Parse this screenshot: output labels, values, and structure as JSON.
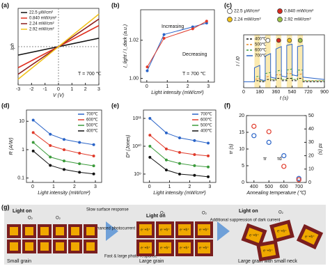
{
  "chart_data": [
    {
      "panel": "(a)",
      "type": "line",
      "x": [
        -3,
        3
      ],
      "xlim": [
        -3,
        3
      ],
      "xticks": [
        -3,
        -2,
        -1,
        0,
        1,
        2,
        3
      ],
      "ylim": [
        -1,
        1
      ],
      "xlabel": "V (V)",
      "ylabel": "Iph",
      "legend": "upper left",
      "annotations": [
        "T = 700 ℃"
      ],
      "series": [
        {
          "name": "22.5 μW/cm²",
          "color": "#111111",
          "values": [
            -0.22,
            0.22
          ]
        },
        {
          "name": "0.840 mW/cm²",
          "color": "#e03020",
          "values": [
            -0.55,
            0.55
          ]
        },
        {
          "name": "2.24 mW/cm²",
          "color": "#8b1a1a",
          "values": [
            -0.72,
            0.72
          ]
        },
        {
          "name": "2.92 mW/cm²",
          "color": "#f2c21b",
          "values": [
            -0.85,
            0.85
          ]
        }
      ]
    },
    {
      "panel": "(b)",
      "type": "line",
      "markers": true,
      "x": [
        0.0225,
        0.84,
        2.24,
        2.92
      ],
      "xlim": [
        -0.3,
        3.3
      ],
      "xticks": [
        0,
        1,
        2,
        3
      ],
      "ylim": [
        0.998,
        1.036
      ],
      "yticks": [
        {
          "value": 1,
          "label": "1.00"
        },
        1.02
      ],
      "xlabel": "Light intensity (mW/cm²)",
      "ylabel": "I_light / I_dark (a.u.)",
      "annotations": [
        "Increasing",
        "Decreasing",
        "T = 700 ℃"
      ],
      "series": [
        {
          "name": "Increasing",
          "color": "#2a64c8",
          "values": [
            1.004,
            1.023,
            1.027,
            1.029
          ]
        },
        {
          "name": "Decreasing",
          "color": "#e03a2a",
          "values": [
            1.006,
            1.021,
            1.026,
            1.03
          ]
        }
      ]
    },
    {
      "panel": "(c)",
      "type": "line",
      "x": [
        0,
        120,
        120,
        180,
        180,
        240,
        240,
        300,
        300,
        360,
        360,
        420,
        420,
        480,
        480,
        540,
        540,
        600,
        600,
        660,
        660,
        900
      ],
      "xlim": [
        0,
        900
      ],
      "xticks": [
        0,
        180,
        360,
        540,
        720,
        900
      ],
      "ylim": [
        0.995,
        1.04
      ],
      "xlabel": "t (s)",
      "ylabel": "I / I0",
      "legend": "upper left",
      "light_on": [
        [
          120,
          180
        ],
        [
          240,
          300
        ],
        [
          360,
          420
        ],
        [
          480,
          540
        ],
        [
          600,
          660
        ]
      ],
      "markers_legend": [
        {
          "name": "22.5 μW/cm²",
          "color": "#ffffff"
        },
        {
          "name": "0.840 mW/cm²",
          "color": "#d62a1e"
        },
        {
          "name": "2.24 mW/cm²",
          "color": "#f2c21b"
        },
        {
          "name": "2.92 mW/cm²",
          "color": "#9cc24a"
        }
      ],
      "series": [
        {
          "name": "400℃",
          "color": "#111111",
          "dash": true,
          "values": [
            1.0,
            1.0,
            1.001,
            1.001,
            1.0,
            1.0,
            1.002,
            1.002,
            1.001,
            1.001,
            1.003,
            1.003,
            1.001,
            1.001,
            1.003,
            1.003,
            1.001,
            1.001,
            1.003,
            1.003,
            1.0,
            1.0
          ]
        },
        {
          "name": "500℃",
          "color": "#e8891e",
          "dash": true,
          "values": [
            1.0,
            1.0,
            1.002,
            1.003,
            1.001,
            1.001,
            1.004,
            1.005,
            1.002,
            1.002,
            1.006,
            1.006,
            1.002,
            1.002,
            1.007,
            1.007,
            1.002,
            1.002,
            1.006,
            1.007,
            1.001,
            1.001
          ]
        },
        {
          "name": "600℃",
          "color": "#3a9a3a",
          "dash": true,
          "values": [
            1.0,
            1.0,
            1.004,
            1.005,
            1.001,
            1.001,
            1.007,
            1.008,
            1.002,
            1.002,
            1.009,
            1.01,
            1.002,
            1.002,
            1.01,
            1.011,
            1.002,
            1.002,
            1.01,
            1.01,
            1.001,
            1.001
          ]
        },
        {
          "name": "700℃",
          "color": "#2a64c8",
          "values": [
            1.0,
            1.0,
            1.012,
            1.014,
            1.002,
            1.001,
            1.022,
            1.024,
            1.004,
            1.003,
            1.028,
            1.03,
            1.005,
            1.004,
            1.031,
            1.032,
            1.006,
            1.005,
            1.03,
            1.031,
            1.004,
            1.002
          ]
        }
      ]
    },
    {
      "panel": "(d)",
      "type": "line",
      "markers": true,
      "log_scale": true,
      "x": [
        0.0225,
        0.84,
        1.5,
        2.24,
        2.92
      ],
      "xlim": [
        -0.3,
        3.3
      ],
      "xticks": [
        0,
        1,
        2,
        3
      ],
      "ylim": [
        0.07,
        25
      ],
      "yticks": [
        0.1,
        1,
        10
      ],
      "xlabel": "Light intensity (mW/cm²)",
      "ylabel": "R (A/W)",
      "legend": "upper right",
      "series": [
        {
          "name": "700℃",
          "color": "#2a64c8",
          "values": [
            11,
            3.5,
            2.3,
            1.8,
            1.5
          ]
        },
        {
          "name": "600℃",
          "color": "#e03a2a",
          "values": [
            4,
            1.4,
            1.0,
            0.75,
            0.6
          ]
        },
        {
          "name": "500℃",
          "color": "#3a9a3a",
          "values": [
            1.8,
            0.55,
            0.4,
            0.32,
            0.27
          ]
        },
        {
          "name": "400℃",
          "color": "#111111",
          "values": [
            0.9,
            0.28,
            0.2,
            0.16,
            0.14
          ]
        }
      ]
    },
    {
      "panel": "(e)",
      "type": "line",
      "markers": true,
      "log_scale": true,
      "x": [
        0.0225,
        0.84,
        1.5,
        2.24,
        2.92
      ],
      "xlim": [
        -0.3,
        3.3
      ],
      "xticks": [
        0,
        1,
        2,
        3
      ],
      "ylim": [
        500000000,
        200000000000
      ],
      "yticks": [
        {
          "value": 1000000000,
          "label": "10⁹"
        },
        {
          "value": 10000000000,
          "label": "10¹⁰"
        },
        {
          "value": 100000000000,
          "label": "10¹¹"
        }
      ],
      "xlabel": "Light intensity (mW/cm²)",
      "ylabel": "D* (Jones)",
      "legend": "upper right",
      "series": [
        {
          "name": "700℃",
          "color": "#2a64c8",
          "values": [
            100000000000,
            30000000000,
            20000000000,
            16000000000,
            13000000000
          ]
        },
        {
          "name": "600℃",
          "color": "#e03a2a",
          "values": [
            25000000000,
            8000000000,
            6000000000,
            5000000000,
            4500000000
          ]
        },
        {
          "name": "500℃",
          "color": "#3a9a3a",
          "values": [
            10000000000,
            3200000000,
            2400000000,
            2000000000,
            1800000000
          ]
        },
        {
          "name": "400℃",
          "color": "#111111",
          "values": [
            4000000000,
            1400000000,
            1000000000,
            900000000,
            800000000
          ]
        }
      ]
    },
    {
      "panel": "(f)",
      "type": "scatter",
      "x": [
        400,
        500,
        600,
        700
      ],
      "xlim": [
        350,
        750
      ],
      "xticks": [
        400,
        500,
        600,
        700
      ],
      "ylim": [
        0,
        20
      ],
      "yticks": [
        0,
        5,
        10,
        15,
        20
      ],
      "y2lim": [
        0,
        50
      ],
      "y2ticks": [
        0,
        10,
        20,
        30,
        40,
        50
      ],
      "xlabel": "Annealing temperature (℃)",
      "ylabel": "τr (s)",
      "y2label": "τd (s)",
      "annotations": [
        "τr",
        "τd"
      ],
      "series": [
        {
          "name": "τr",
          "color": "#2a64c8",
          "values": [
            14,
            12,
            8,
            1.2
          ]
        },
        {
          "name": "τd",
          "color": "#e03a2a",
          "axis": "y2",
          "values": [
            42,
            38,
            12,
            2
          ]
        }
      ]
    }
  ],
  "diagram": {
    "panel": "(g)",
    "light_on": "Light on",
    "slow": "Slow surface response",
    "enhanced": "Enhanced photocurrent",
    "fast": "Fast & large photo-response",
    "suppression": "Additional suppression of dark current",
    "small_grain": "Small grain",
    "large_grain": "Large grain",
    "neck": "Large grain with small neck",
    "o2": "O₂",
    "carrier": "e⁻+h⁺"
  }
}
